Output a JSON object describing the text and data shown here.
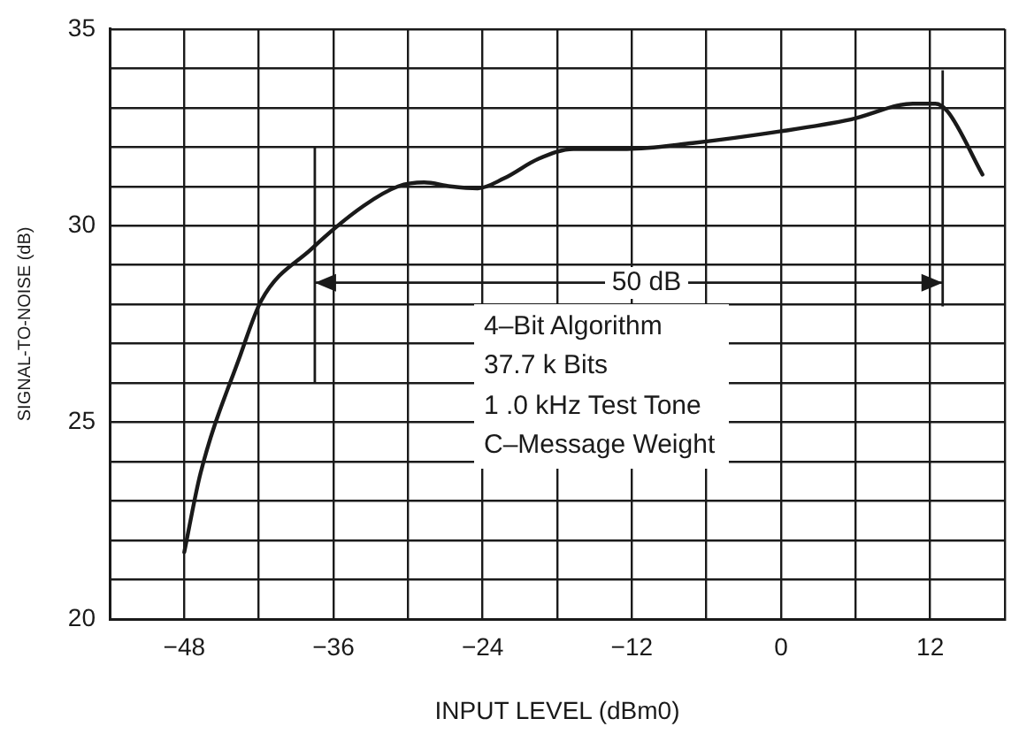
{
  "chart_data": {
    "type": "line",
    "xlabel": "INPUT LEVEL (dBm0)",
    "ylabel": "SIGNAL-TO-NOISE (dB)",
    "x": [
      -48,
      -46.7,
      -43.5,
      -41.8,
      -37.8,
      -33.6,
      -30.8,
      -28.7,
      -26.6,
      -24.4,
      -22.3,
      -19.5,
      -16.7,
      -12.4,
      -7.1,
      0,
      5.6,
      10.6,
      12.4,
      13.4,
      16.2
    ],
    "values": [
      21.7,
      23.7,
      26.7,
      28.1,
      29.4,
      30.5,
      31.0,
      31.1,
      31.0,
      30.95,
      31.2,
      31.7,
      31.95,
      31.95,
      32.1,
      32.4,
      32.7,
      33.1,
      33.1,
      32.9,
      31.3
    ],
    "color": "#1a1a1a",
    "marker": "none",
    "line_style": "solid",
    "grid": true,
    "xlim": [
      -54,
      18
    ],
    "ylim": [
      20,
      35
    ],
    "xticks": [
      {
        "value": -54,
        "label": null
      },
      -48,
      {
        "value": -42,
        "label": null
      },
      -36,
      {
        "value": -30,
        "label": null
      },
      -24,
      {
        "value": -18,
        "label": null
      },
      -12,
      {
        "value": -6,
        "label": null
      },
      0,
      {
        "value": 6,
        "label": null
      },
      12,
      {
        "value": 18,
        "label": null
      }
    ],
    "yticks": [
      20,
      {
        "value": 21,
        "label": null
      },
      {
        "value": 22,
        "label": null
      },
      {
        "value": 23,
        "label": null
      },
      {
        "value": 24,
        "label": null
      },
      25,
      {
        "value": 26,
        "label": null
      },
      {
        "value": 27,
        "label": null
      },
      {
        "value": 28,
        "label": null
      },
      {
        "value": 29,
        "label": null
      },
      30,
      {
        "value": 31,
        "label": null
      },
      {
        "value": 32,
        "label": null
      },
      {
        "value": 33,
        "label": null
      },
      {
        "value": 34,
        "label": null
      },
      35
    ],
    "ref_lines": [
      {
        "axis": "x",
        "value": -37.5
      },
      {
        "axis": "x",
        "value": 13
      }
    ],
    "annotations": [
      "50 dB",
      "4–Bit Algorithm",
      "37.7 k Bits",
      "1 .0 kHz Test Tone",
      "C–Message Weight"
    ]
  }
}
